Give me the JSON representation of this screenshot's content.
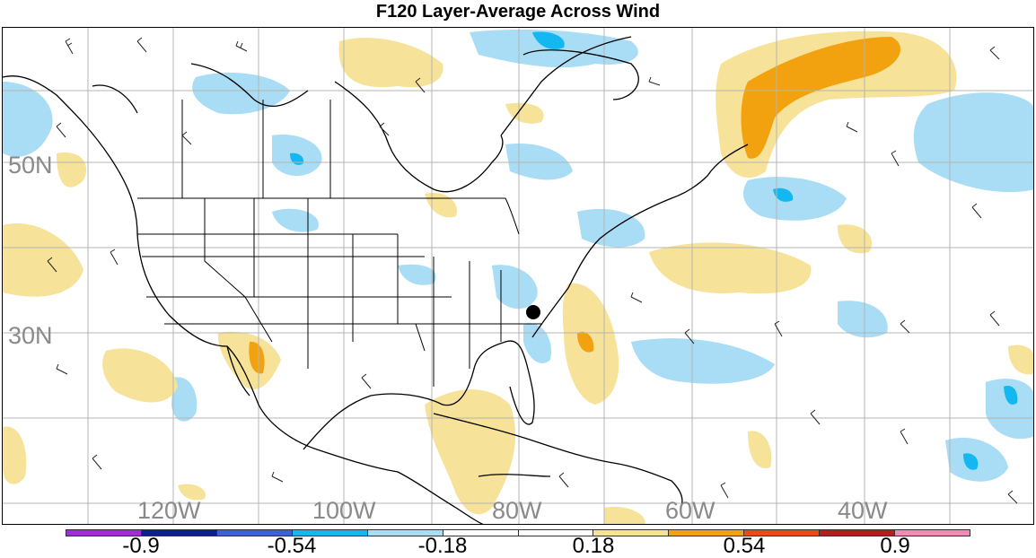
{
  "title": "F120 Layer-Average Across Wind",
  "map": {
    "lat_labels": [
      "50N",
      "30N"
    ],
    "lon_labels": [
      "120W",
      "100W",
      "80W",
      "60W",
      "40W"
    ],
    "features": [
      "coastlines",
      "state-borders",
      "wind-barbs",
      "shaded-anomaly-contours",
      "station-marker"
    ]
  },
  "colorbar": {
    "colors": [
      "#9b30d9",
      "#0c1f8f",
      "#3a62d6",
      "#14b8f0",
      "#a9dcf5",
      "#ffffff",
      "#ffffff",
      "#f7e29a",
      "#f2a20e",
      "#eb4a16",
      "#b3201c",
      "#f08cb4"
    ],
    "tick_labels": [
      "-0.9",
      "-0.54",
      "-0.18",
      "0.18",
      "0.54",
      "0.9"
    ]
  },
  "colors": {
    "light_blue": "#a9dcf5",
    "mid_blue": "#14b8f0",
    "light_yellow": "#f7e29a",
    "orange": "#f2a20e",
    "grid": "#b4b4b4"
  }
}
